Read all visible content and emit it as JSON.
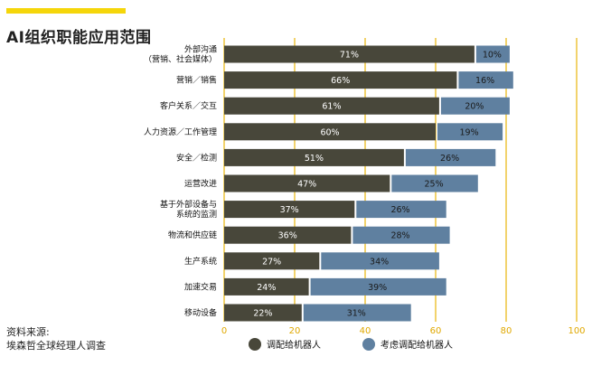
{
  "title": "AI组织职能应用范围",
  "source": {
    "line1": "资料来源:",
    "line2": "埃森哲全球经理人调查"
  },
  "colors": {
    "accent": "#f5d60a",
    "series_deployed": "#48473a",
    "series_considering": "#5f80a0",
    "gridline": "#e8b60c"
  },
  "chart_data": {
    "type": "bar",
    "orientation": "horizontal",
    "stacked": true,
    "categories": [
      [
        "外部沟通",
        "（营销、社会媒体）"
      ],
      [
        "营销／销售"
      ],
      [
        "客户关系／交互"
      ],
      [
        "人力资源／工作管理"
      ],
      [
        "安全／检测"
      ],
      [
        "运营改进"
      ],
      [
        "基于外部设备与",
        "系统的监测"
      ],
      [
        "物流和供应链"
      ],
      [
        "生产系统"
      ],
      [
        "加速交易"
      ],
      [
        "移动设备"
      ]
    ],
    "series": [
      {
        "name": "调配给机器人",
        "values": [
          71,
          66,
          61,
          60,
          51,
          47,
          37,
          36,
          27,
          24,
          22
        ]
      },
      {
        "name": "考虑调配给机器人",
        "values": [
          10,
          16,
          20,
          19,
          26,
          25,
          26,
          28,
          34,
          39,
          31
        ]
      }
    ],
    "xlim": [
      0,
      100
    ],
    "xticks": [
      0,
      20,
      40,
      60,
      80,
      100
    ],
    "value_suffix": "%",
    "grid": true,
    "legend_position": "bottom"
  }
}
